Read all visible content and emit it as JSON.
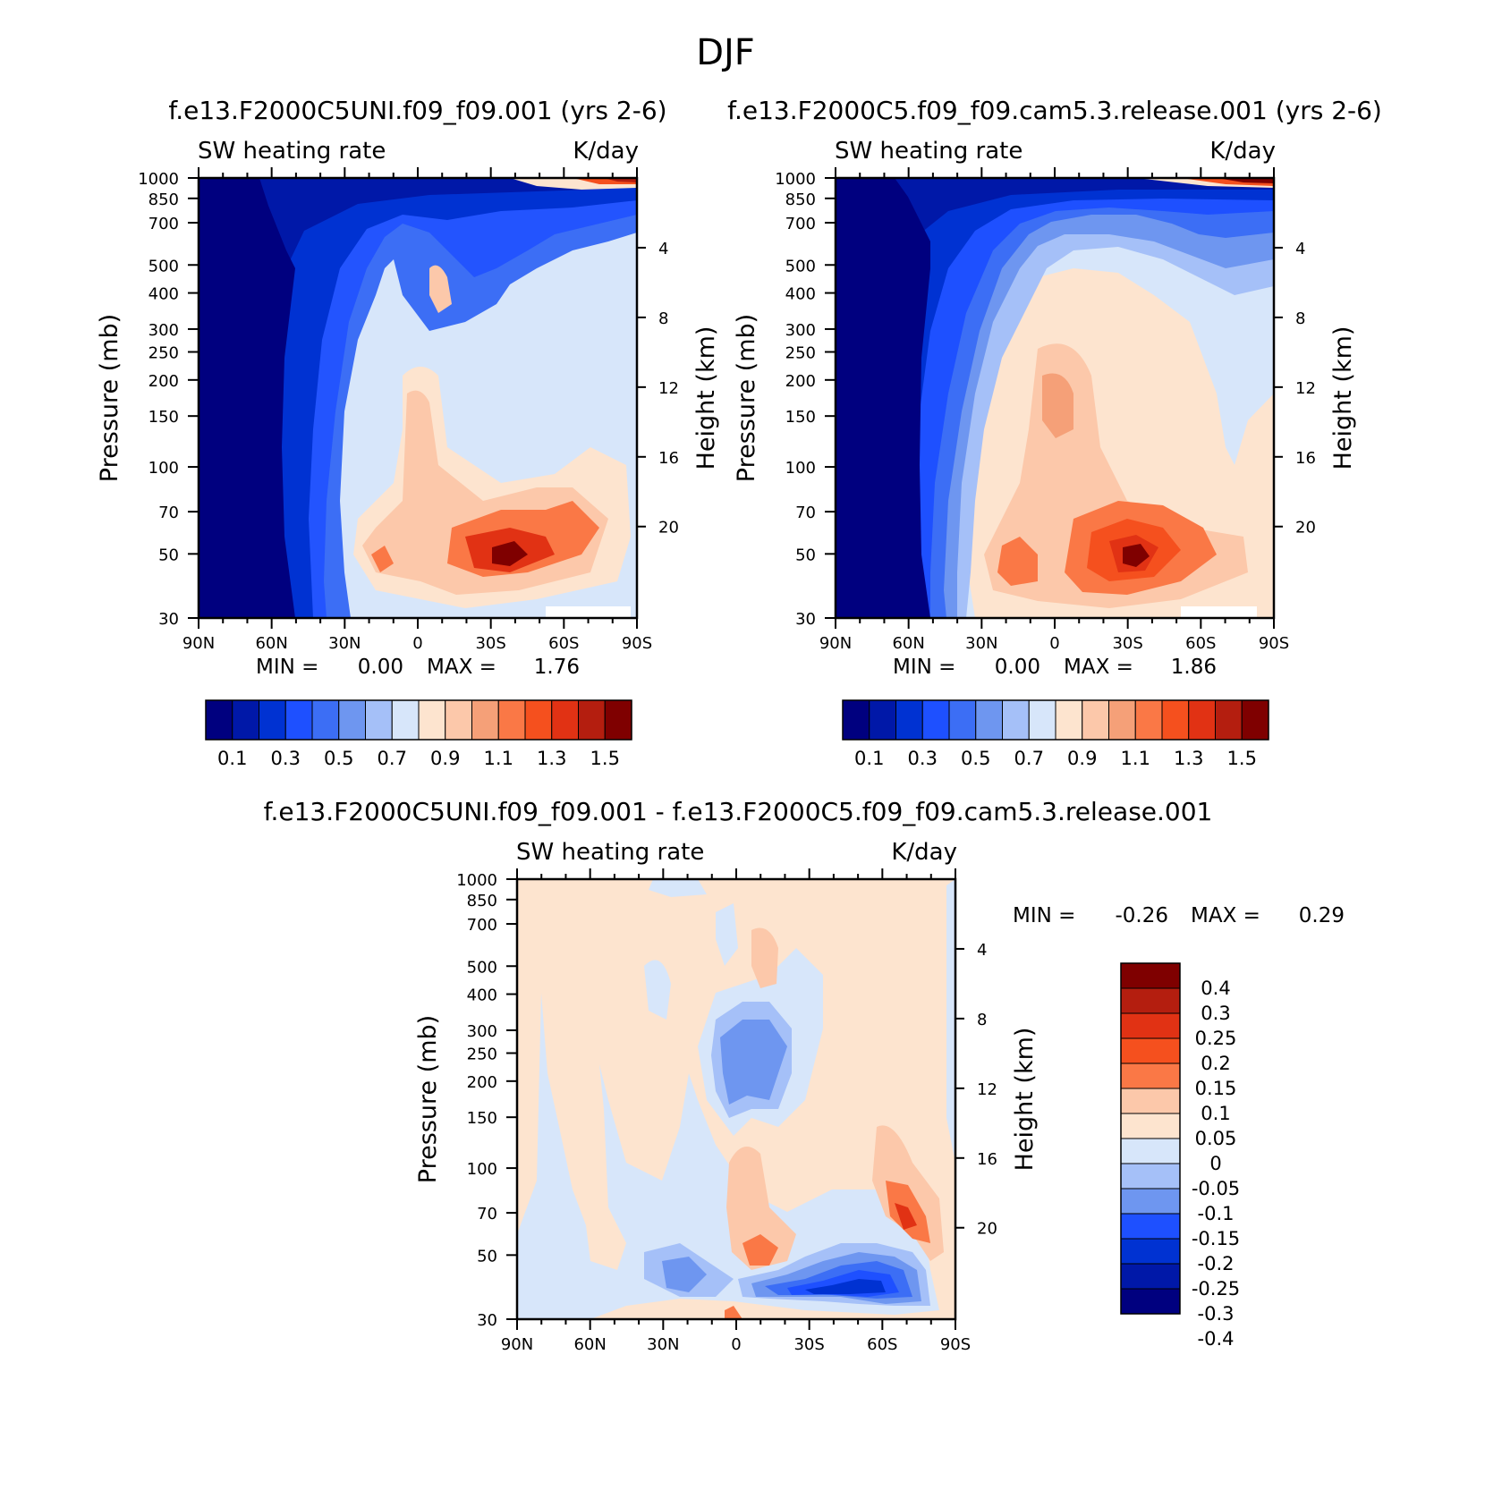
{
  "figure_title": "DJF",
  "colors": {
    "seq": [
      "#00007f",
      "#0018a8",
      "#0032d2",
      "#1e50ff",
      "#3c6ef5",
      "#6e96f0",
      "#a5c0f8",
      "#d7e6fa",
      "#fde4cf",
      "#fcc8aa",
      "#f5a078",
      "#fa7846",
      "#f5501e",
      "#e13214",
      "#b41e0f",
      "#7f0000"
    ],
    "diff": [
      "#00007f",
      "#0018a8",
      "#0032d2",
      "#1e50ff",
      "#6e96f0",
      "#a5c0f8",
      "#d7e6fa",
      "#fde4cf",
      "#fcc8aa",
      "#fa7846",
      "#f5501e",
      "#e13214",
      "#b41e0f",
      "#7f0000"
    ]
  },
  "chart_data": [
    {
      "type": "heatmap",
      "title": "f.e13.F2000C5UNI.f09_f09.001 (yrs 2-6)",
      "left_string": "SW heating rate",
      "right_string": "K/day",
      "xlabel": "",
      "ylabel": "Pressure (mb)",
      "y2label": "Height (km)",
      "x_ticks": [
        "90N",
        "60N",
        "30N",
        "0",
        "30S",
        "60S",
        "90S"
      ],
      "xlim": [
        90,
        -90
      ],
      "y_ticks": [
        "30",
        "50",
        "70",
        "100",
        "150",
        "200",
        "250",
        "300",
        "400",
        "500",
        "700",
        "850",
        "1000"
      ],
      "ylim": [
        1000,
        30
      ],
      "y_scale": "log",
      "y2_ticks": [
        "20",
        "16",
        "12",
        "8",
        "4"
      ],
      "min_label": "MIN =",
      "min_value": "0.00",
      "max_label": "MAX =",
      "max_value": "1.76",
      "colorbar_labels": [
        "0.1",
        "0.3",
        "0.5",
        "0.7",
        "0.9",
        "1.1",
        "1.3",
        "1.5"
      ],
      "levels": [
        0.1,
        0.2,
        0.3,
        0.4,
        0.5,
        0.6,
        0.7,
        0.8,
        0.9,
        1.0,
        1.1,
        1.2,
        1.3,
        1.4,
        1.5
      ]
    },
    {
      "type": "heatmap",
      "title": "f.e13.F2000C5.f09_f09.cam5.3.release.001 (yrs 2-6)",
      "left_string": "SW heating rate",
      "right_string": "K/day",
      "xlabel": "",
      "ylabel": "Pressure (mb)",
      "y2label": "Height (km)",
      "x_ticks": [
        "90N",
        "60N",
        "30N",
        "0",
        "30S",
        "60S",
        "90S"
      ],
      "xlim": [
        90,
        -90
      ],
      "y_ticks": [
        "30",
        "50",
        "70",
        "100",
        "150",
        "200",
        "250",
        "300",
        "400",
        "500",
        "700",
        "850",
        "1000"
      ],
      "ylim": [
        1000,
        30
      ],
      "y_scale": "log",
      "y2_ticks": [
        "20",
        "16",
        "12",
        "8",
        "4"
      ],
      "min_label": "MIN =",
      "min_value": "0.00",
      "max_label": "MAX =",
      "max_value": "1.86",
      "colorbar_labels": [
        "0.1",
        "0.3",
        "0.5",
        "0.7",
        "0.9",
        "1.1",
        "1.3",
        "1.5"
      ],
      "levels": [
        0.1,
        0.2,
        0.3,
        0.4,
        0.5,
        0.6,
        0.7,
        0.8,
        0.9,
        1.0,
        1.1,
        1.2,
        1.3,
        1.4,
        1.5
      ]
    },
    {
      "type": "heatmap",
      "title": "f.e13.F2000C5UNI.f09_f09.001 - f.e13.F2000C5.f09_f09.cam5.3.release.001",
      "left_string": "SW heating rate",
      "right_string": "K/day",
      "xlabel": "",
      "ylabel": "Pressure (mb)",
      "y2label": "Height (km)",
      "x_ticks": [
        "90N",
        "60N",
        "30N",
        "0",
        "30S",
        "60S",
        "90S"
      ],
      "xlim": [
        90,
        -90
      ],
      "y_ticks": [
        "30",
        "50",
        "70",
        "100",
        "150",
        "200",
        "250",
        "300",
        "400",
        "500",
        "700",
        "850",
        "1000"
      ],
      "ylim": [
        1000,
        30
      ],
      "y_scale": "log",
      "y2_ticks": [
        "20",
        "16",
        "12",
        "8",
        "4"
      ],
      "min_label": "MIN =",
      "min_value": "-0.26",
      "max_label": "MAX =",
      "max_value": "0.29",
      "colorbar_labels": [
        "0.4",
        "0.3",
        "0.25",
        "0.2",
        "0.15",
        "0.1",
        "0.05",
        "0",
        "-0.05",
        "-0.1",
        "-0.15",
        "-0.2",
        "-0.25",
        "-0.3",
        "-0.4"
      ],
      "levels": [
        -0.4,
        -0.3,
        -0.25,
        -0.2,
        -0.15,
        -0.1,
        -0.05,
        0,
        0.05,
        0.1,
        0.15,
        0.2,
        0.25,
        0.3,
        0.4
      ]
    }
  ]
}
